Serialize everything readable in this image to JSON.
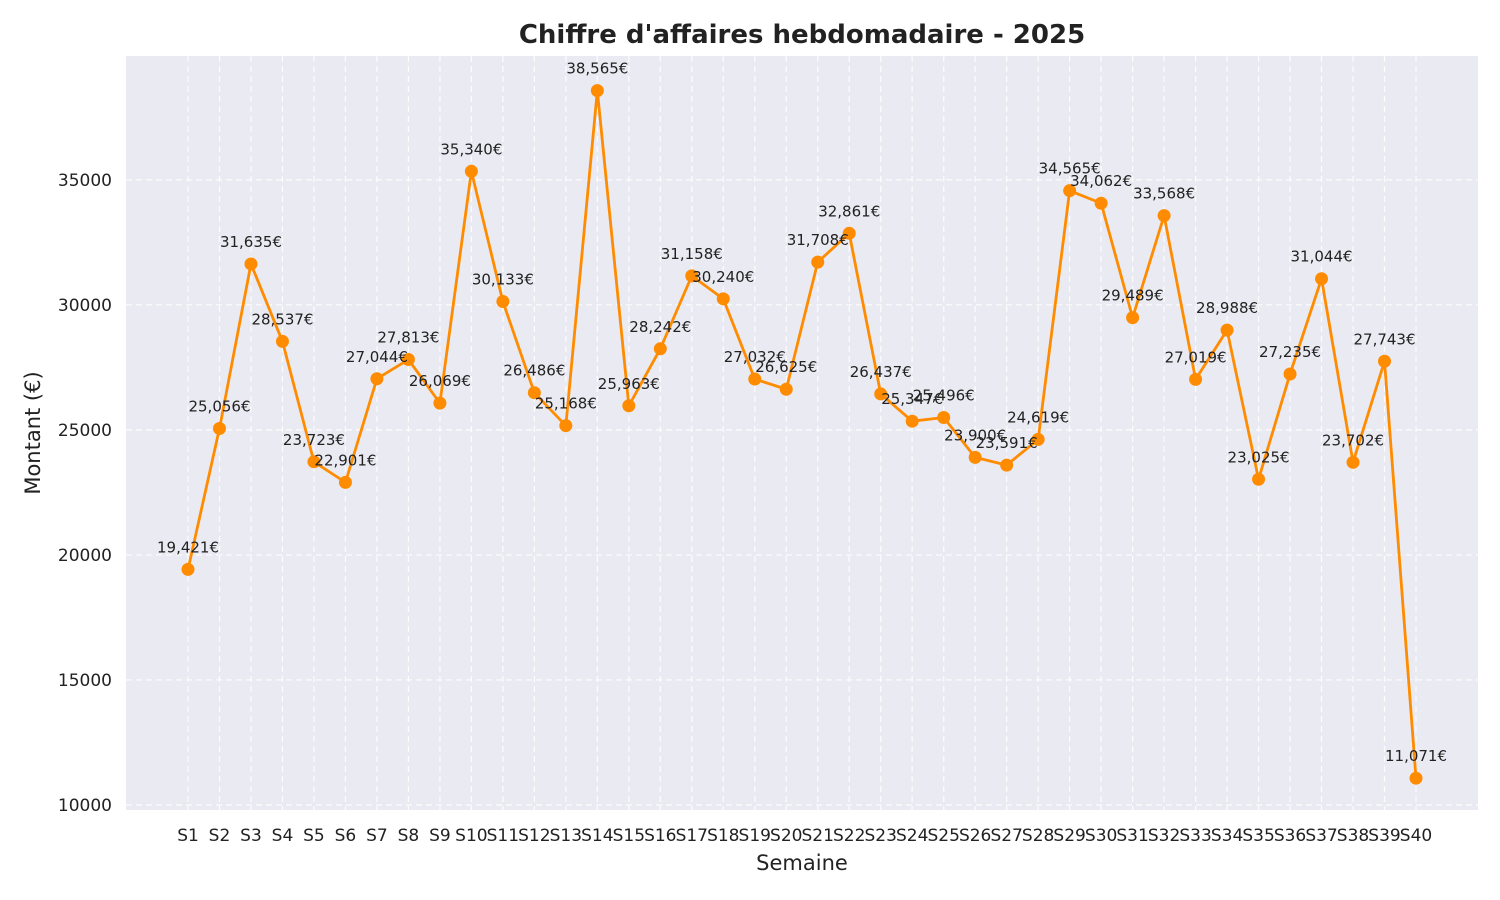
{
  "chart_data": {
    "type": "line",
    "title": "Chiffre d'affaires hebdomadaire - 2025",
    "xlabel": "Semaine",
    "ylabel": "Montant (€)",
    "categories": [
      "S1",
      "S2",
      "S3",
      "S4",
      "S5",
      "S6",
      "S7",
      "S8",
      "S9",
      "S10",
      "S11",
      "S12",
      "S13",
      "S14",
      "S15",
      "S16",
      "S17",
      "S18",
      "S19",
      "S20",
      "S21",
      "S22",
      "S23",
      "S24",
      "S25",
      "S26",
      "S27",
      "S28",
      "S29",
      "S30",
      "S31",
      "S32",
      "S33",
      "S34",
      "S35",
      "S36",
      "S37",
      "S38",
      "S39",
      "S40"
    ],
    "series": [
      {
        "values": [
          19421,
          25056,
          31635,
          28537,
          23723,
          22901,
          27044,
          27813,
          26069,
          35340,
          30133,
          26486,
          25168,
          38565,
          25963,
          28242,
          31158,
          30240,
          27032,
          26625,
          31708,
          32861,
          26437,
          25347,
          25496,
          23900,
          23591,
          24619,
          34565,
          34062,
          29489,
          33568,
          27019,
          28988,
          23025,
          27235,
          31044,
          23702,
          27743,
          11071
        ],
        "labels": [
          "19,421€",
          "25,056€",
          "31,635€",
          "28,537€",
          "23,723€",
          "22,901€",
          "27,044€",
          "27,813€",
          "26,069€",
          "35,340€",
          "30,133€",
          "26,486€",
          "25,168€",
          "38,565€",
          "25,963€",
          "28,242€",
          "31,158€",
          "30,240€",
          "27,032€",
          "26,625€",
          "31,708€",
          "32,861€",
          "26,437€",
          "25,347€",
          "25,496€",
          "23,900€",
          "23,591€",
          "24,619€",
          "34,565€",
          "34,062€",
          "29,489€",
          "33,568€",
          "27,019€",
          "28,988€",
          "23,025€",
          "27,235€",
          "31,044€",
          "23,702€",
          "27,743€",
          "11,071€"
        ],
        "color": "#ff8c00"
      }
    ],
    "yticks": [
      10000,
      15000,
      20000,
      25000,
      30000,
      35000
    ],
    "ylim": [
      9800,
      39950
    ],
    "grid": true,
    "background_color": "#eaeaf2",
    "line_color": "#ff8c00"
  }
}
